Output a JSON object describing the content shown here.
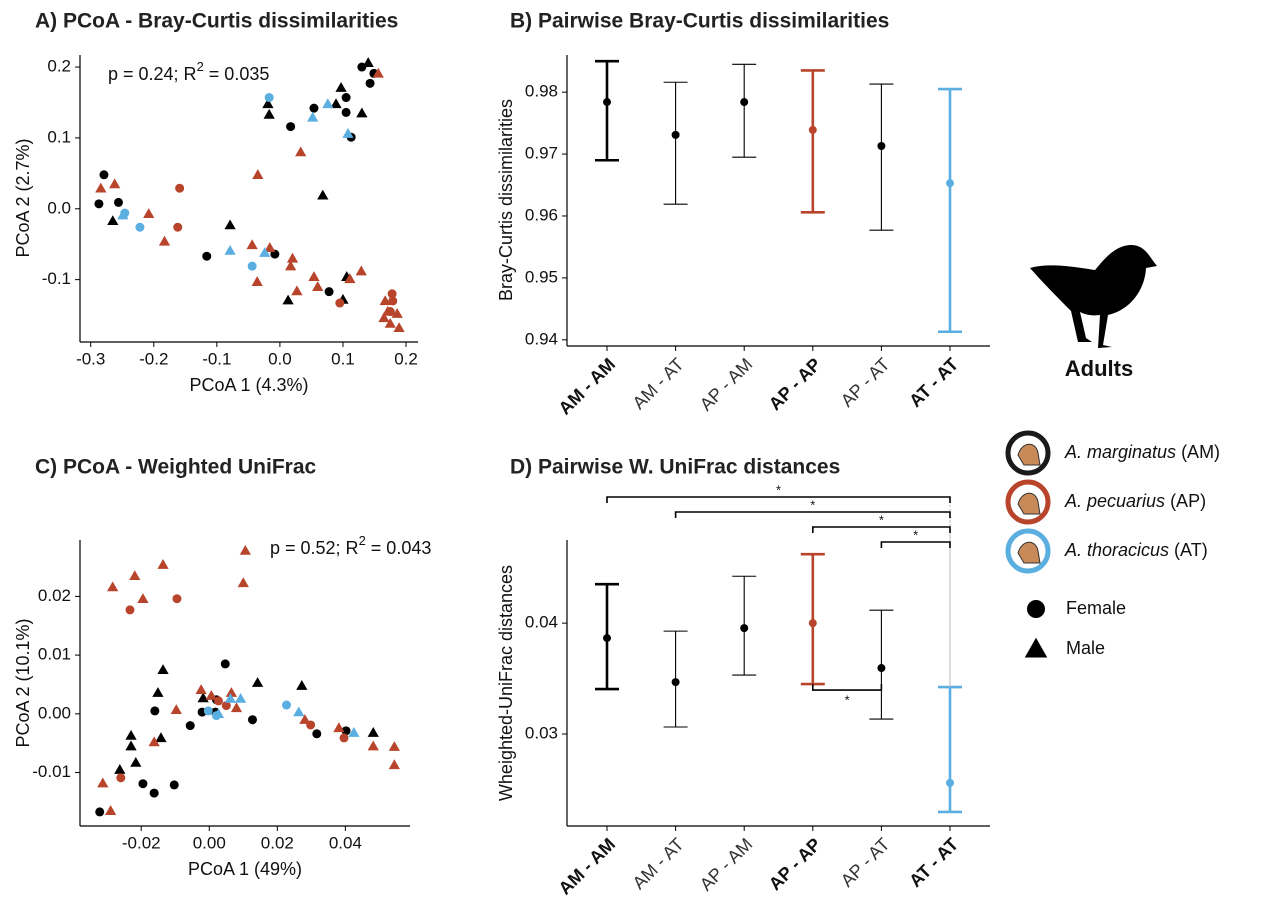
{
  "chart_data": [
    {
      "type": "scatter",
      "title": "A) PCoA - Bray-Curtis dissimilarities",
      "xlabel": "PCoA 1 (4.3%)",
      "ylabel": "PCoA  2 (2.7%)",
      "annotation": {
        "text": "p = 0.24; R",
        "superscript": "2",
        "tail": " = 0.035"
      },
      "xlim": [
        -0.317,
        0.219
      ],
      "ylim": [
        -0.188,
        0.217
      ],
      "xticks": [
        -0.3,
        -0.2,
        -0.1,
        {
          "value": 0,
          "label": "0.0"
        },
        0.1,
        0.2
      ],
      "yticks": [
        -0.1,
        {
          "value": 0,
          "label": "0.0"
        },
        0.1,
        0.2
      ],
      "series": [
        {
          "color": "#000000",
          "marker": "circle",
          "x": [
            -0.279,
            -0.287,
            -0.256,
            -0.116,
            -0.008,
            0.017,
            0.054,
            0.105,
            0.105,
            0.113,
            0.078,
            0.13,
            0.149,
            0.143
          ],
          "y": [
            0.048,
            0.007,
            0.009,
            -0.067,
            -0.064,
            0.116,
            0.142,
            0.157,
            0.136,
            0.101,
            -0.117,
            0.2,
            0.191,
            0.177
          ]
        },
        {
          "color": "#000000",
          "marker": "triangle",
          "x": [
            -0.265,
            -0.079,
            -0.017,
            -0.019,
            0.013,
            0.068,
            0.097,
            0.106,
            0.1,
            0.13,
            0.14,
            0.089
          ],
          "y": [
            -0.017,
            -0.023,
            0.133,
            0.148,
            -0.129,
            0.019,
            0.171,
            -0.096,
            -0.128,
            0.135,
            0.206,
            0.148
          ]
        },
        {
          "color": "#b8452b",
          "marker": "circle",
          "x": [
            -0.159,
            -0.162,
            0.095,
            0.178,
            0.179,
            0.175
          ],
          "y": [
            0.029,
            -0.026,
            -0.133,
            -0.12,
            -0.13,
            -0.145
          ]
        },
        {
          "color": "#b8452b",
          "marker": "triangle",
          "x": [
            -0.284,
            -0.262,
            -0.208,
            -0.183,
            -0.035,
            -0.044,
            -0.036,
            -0.016,
            0.017,
            0.02,
            0.027,
            0.054,
            0.06,
            0.111,
            0.129,
            0.033,
            0.156,
            0.167,
            0.171,
            0.186,
            0.189,
            0.175,
            0.165
          ],
          "y": [
            0.029,
            0.035,
            -0.007,
            -0.046,
            0.048,
            -0.051,
            -0.103,
            -0.055,
            -0.081,
            -0.07,
            -0.116,
            -0.096,
            -0.11,
            -0.099,
            -0.088,
            0.08,
            0.191,
            -0.13,
            -0.145,
            -0.148,
            -0.168,
            -0.162,
            -0.154
          ]
        },
        {
          "color": "#5aaee0",
          "marker": "circle",
          "x": [
            -0.017,
            -0.246,
            -0.222,
            -0.044
          ],
          "y": [
            0.157,
            -0.006,
            -0.026,
            -0.081
          ]
        },
        {
          "color": "#5aaee0",
          "marker": "triangle",
          "x": [
            -0.249,
            -0.079,
            -0.024,
            0.052,
            0.076,
            0.108
          ],
          "y": [
            -0.009,
            -0.059,
            -0.062,
            0.129,
            0.148,
            0.106
          ]
        }
      ]
    },
    {
      "type": "errorbar",
      "title": "B) Pairwise Bray-Curtis dissimilarities",
      "ylabel": "Bray-Curtis dissimilarities",
      "categories": [
        "AM - AM",
        "AM - AT",
        "AP - AM",
        "AP - AP",
        "AP - AT",
        "AT - AT"
      ],
      "emphasis": [
        true,
        false,
        false,
        true,
        false,
        true
      ],
      "colors": [
        "#000000",
        "#000000",
        "#000000",
        "#b8452b",
        "#000000",
        "#5aaee0"
      ],
      "values": [
        0.9784,
        0.9731,
        0.9784,
        0.9739,
        0.9713,
        0.9653
      ],
      "lower": [
        0.969,
        0.9619,
        0.9695,
        0.9606,
        0.9577,
        0.9413
      ],
      "upper": [
        0.985,
        0.9816,
        0.9845,
        0.9835,
        0.9813,
        0.9805
      ],
      "ylim": [
        0.939,
        0.986
      ],
      "yticks": [
        0.94,
        0.95,
        0.96,
        0.97,
        0.98
      ]
    },
    {
      "type": "scatter",
      "title": "C) PCoA - Weighted UniFrac",
      "xlabel": "PCoA 1 (49%)",
      "ylabel": "PCoA  2 (10.1%)",
      "annotation": {
        "text": "p = 0.52; R",
        "superscript": "2",
        "tail": " = 0.043"
      },
      "xlim": [
        -0.038,
        0.059
      ],
      "ylim": [
        -0.0191,
        0.0296
      ],
      "xticks": [
        -0.02,
        {
          "value": 0,
          "label": "0.00"
        },
        0.02,
        0.04
      ],
      "yticks": [
        -0.01,
        {
          "value": 0,
          "label": "0.00"
        },
        0.01,
        0.02
      ],
      "series": [
        {
          "color": "#000000",
          "marker": "circle",
          "x": [
            -0.0322,
            -0.0195,
            -0.0162,
            -0.0103,
            -0.016,
            -0.0056,
            -0.0021,
            0.0021,
            0.0047,
            0.0018,
            0.0127,
            0.0316,
            0.0402
          ],
          "y": [
            -0.0167,
            -0.0119,
            -0.0135,
            -0.0121,
            0.0005,
            -0.002,
            0.0003,
            0.0024,
            0.0085,
            0.0003,
            -0.001,
            -0.0034,
            -0.0029
          ]
        },
        {
          "color": "#000000",
          "marker": "triangle",
          "x": [
            -0.0151,
            -0.0136,
            -0.023,
            -0.023,
            -0.0142,
            -0.0263,
            -0.0216,
            -0.0018,
            0.0142,
            0.0272,
            0.0482
          ],
          "y": [
            0.0036,
            0.0075,
            -0.0037,
            -0.0055,
            -0.0041,
            -0.0095,
            -0.0083,
            0.0027,
            0.0053,
            0.0048,
            -0.0032
          ]
        },
        {
          "color": "#b8452b",
          "marker": "circle",
          "x": [
            -0.0233,
            -0.0095,
            -0.026,
            0.005,
            0.0298,
            0.0396,
            0.0027
          ],
          "y": [
            0.0177,
            0.0196,
            -0.0109,
            0.0014,
            -0.0019,
            -0.0041,
            0.0022
          ]
        },
        {
          "color": "#b8452b",
          "marker": "triangle",
          "x": [
            -0.0284,
            -0.0219,
            -0.0195,
            -0.0136,
            0.0106,
            0.01,
            -0.0313,
            -0.029,
            -0.0097,
            -0.0024,
            0.0065,
            0.008,
            0.0281,
            0.0381,
            0.0482,
            0.0544,
            0.0544,
            -0.0162,
            0.0006
          ],
          "y": [
            0.0216,
            0.0235,
            0.0196,
            0.0254,
            0.0278,
            0.0223,
            -0.0118,
            -0.0165,
            0.0007,
            0.0041,
            0.0036,
            0.001,
            -0.001,
            -0.0024,
            -0.0055,
            -0.0056,
            -0.0087,
            -0.0048,
            0.0031
          ]
        },
        {
          "color": "#5aaee0",
          "marker": "circle",
          "x": [
            0.0021,
            0.0227,
            -0.0003
          ],
          "y": [
            -0.0003,
            0.0015,
            0.0005
          ]
        },
        {
          "color": "#5aaee0",
          "marker": "triangle",
          "x": [
            0.0062,
            0.0092,
            0.0263,
            0.0425,
            0.0027
          ],
          "y": [
            0.0026,
            0.0026,
            0.0003,
            -0.0032,
            0
          ]
        }
      ]
    },
    {
      "type": "errorbar",
      "title": "D) Pairwise W. UniFrac distances",
      "ylabel": "Wheighted-UniFrac distances",
      "categories": [
        "AM - AM",
        "AM - AT",
        "AP - AM",
        "AP - AP",
        "AP - AT",
        "AT - AT"
      ],
      "emphasis": [
        true,
        false,
        false,
        true,
        false,
        true
      ],
      "colors": [
        "#000000",
        "#000000",
        "#000000",
        "#b8452b",
        "#000000",
        "#5aaee0"
      ],
      "values": [
        0.03865,
        0.03468,
        0.03955,
        0.04,
        0.03595,
        0.02559
      ],
      "lower": [
        0.03405,
        0.03063,
        0.03532,
        0.0345,
        0.03135,
        0.02297
      ],
      "upper": [
        0.04351,
        0.03928,
        0.04423,
        0.04622,
        0.04117,
        0.03423
      ],
      "ylim": [
        0.0217,
        0.0475
      ],
      "yticks": [
        0.03,
        0.04
      ],
      "significance": [
        {
          "from": 0,
          "to": 5,
          "label": "*",
          "side": "above"
        },
        {
          "from": 1,
          "to": 5,
          "label": "*",
          "side": "above"
        },
        {
          "from": 3,
          "to": 5,
          "label": "*",
          "side": "above"
        },
        {
          "from": 4,
          "to": 5,
          "label": "*",
          "side": "above"
        },
        {
          "from": 3,
          "to": 4,
          "label": "*",
          "side": "below"
        }
      ]
    }
  ],
  "figure_label": "Adults",
  "legend": {
    "species": [
      {
        "name": "A. marginatus",
        "code": " (AM)",
        "color": "#1a1a1a"
      },
      {
        "name": "A. pecuarius",
        "code": " (AP)",
        "color": "#b8452b"
      },
      {
        "name": "A. thoracicus",
        "code": " (AT)",
        "color": "#5aaee0"
      }
    ],
    "sex": [
      {
        "label": "Female",
        "marker": "circle"
      },
      {
        "label": "Male",
        "marker": "triangle"
      }
    ]
  }
}
